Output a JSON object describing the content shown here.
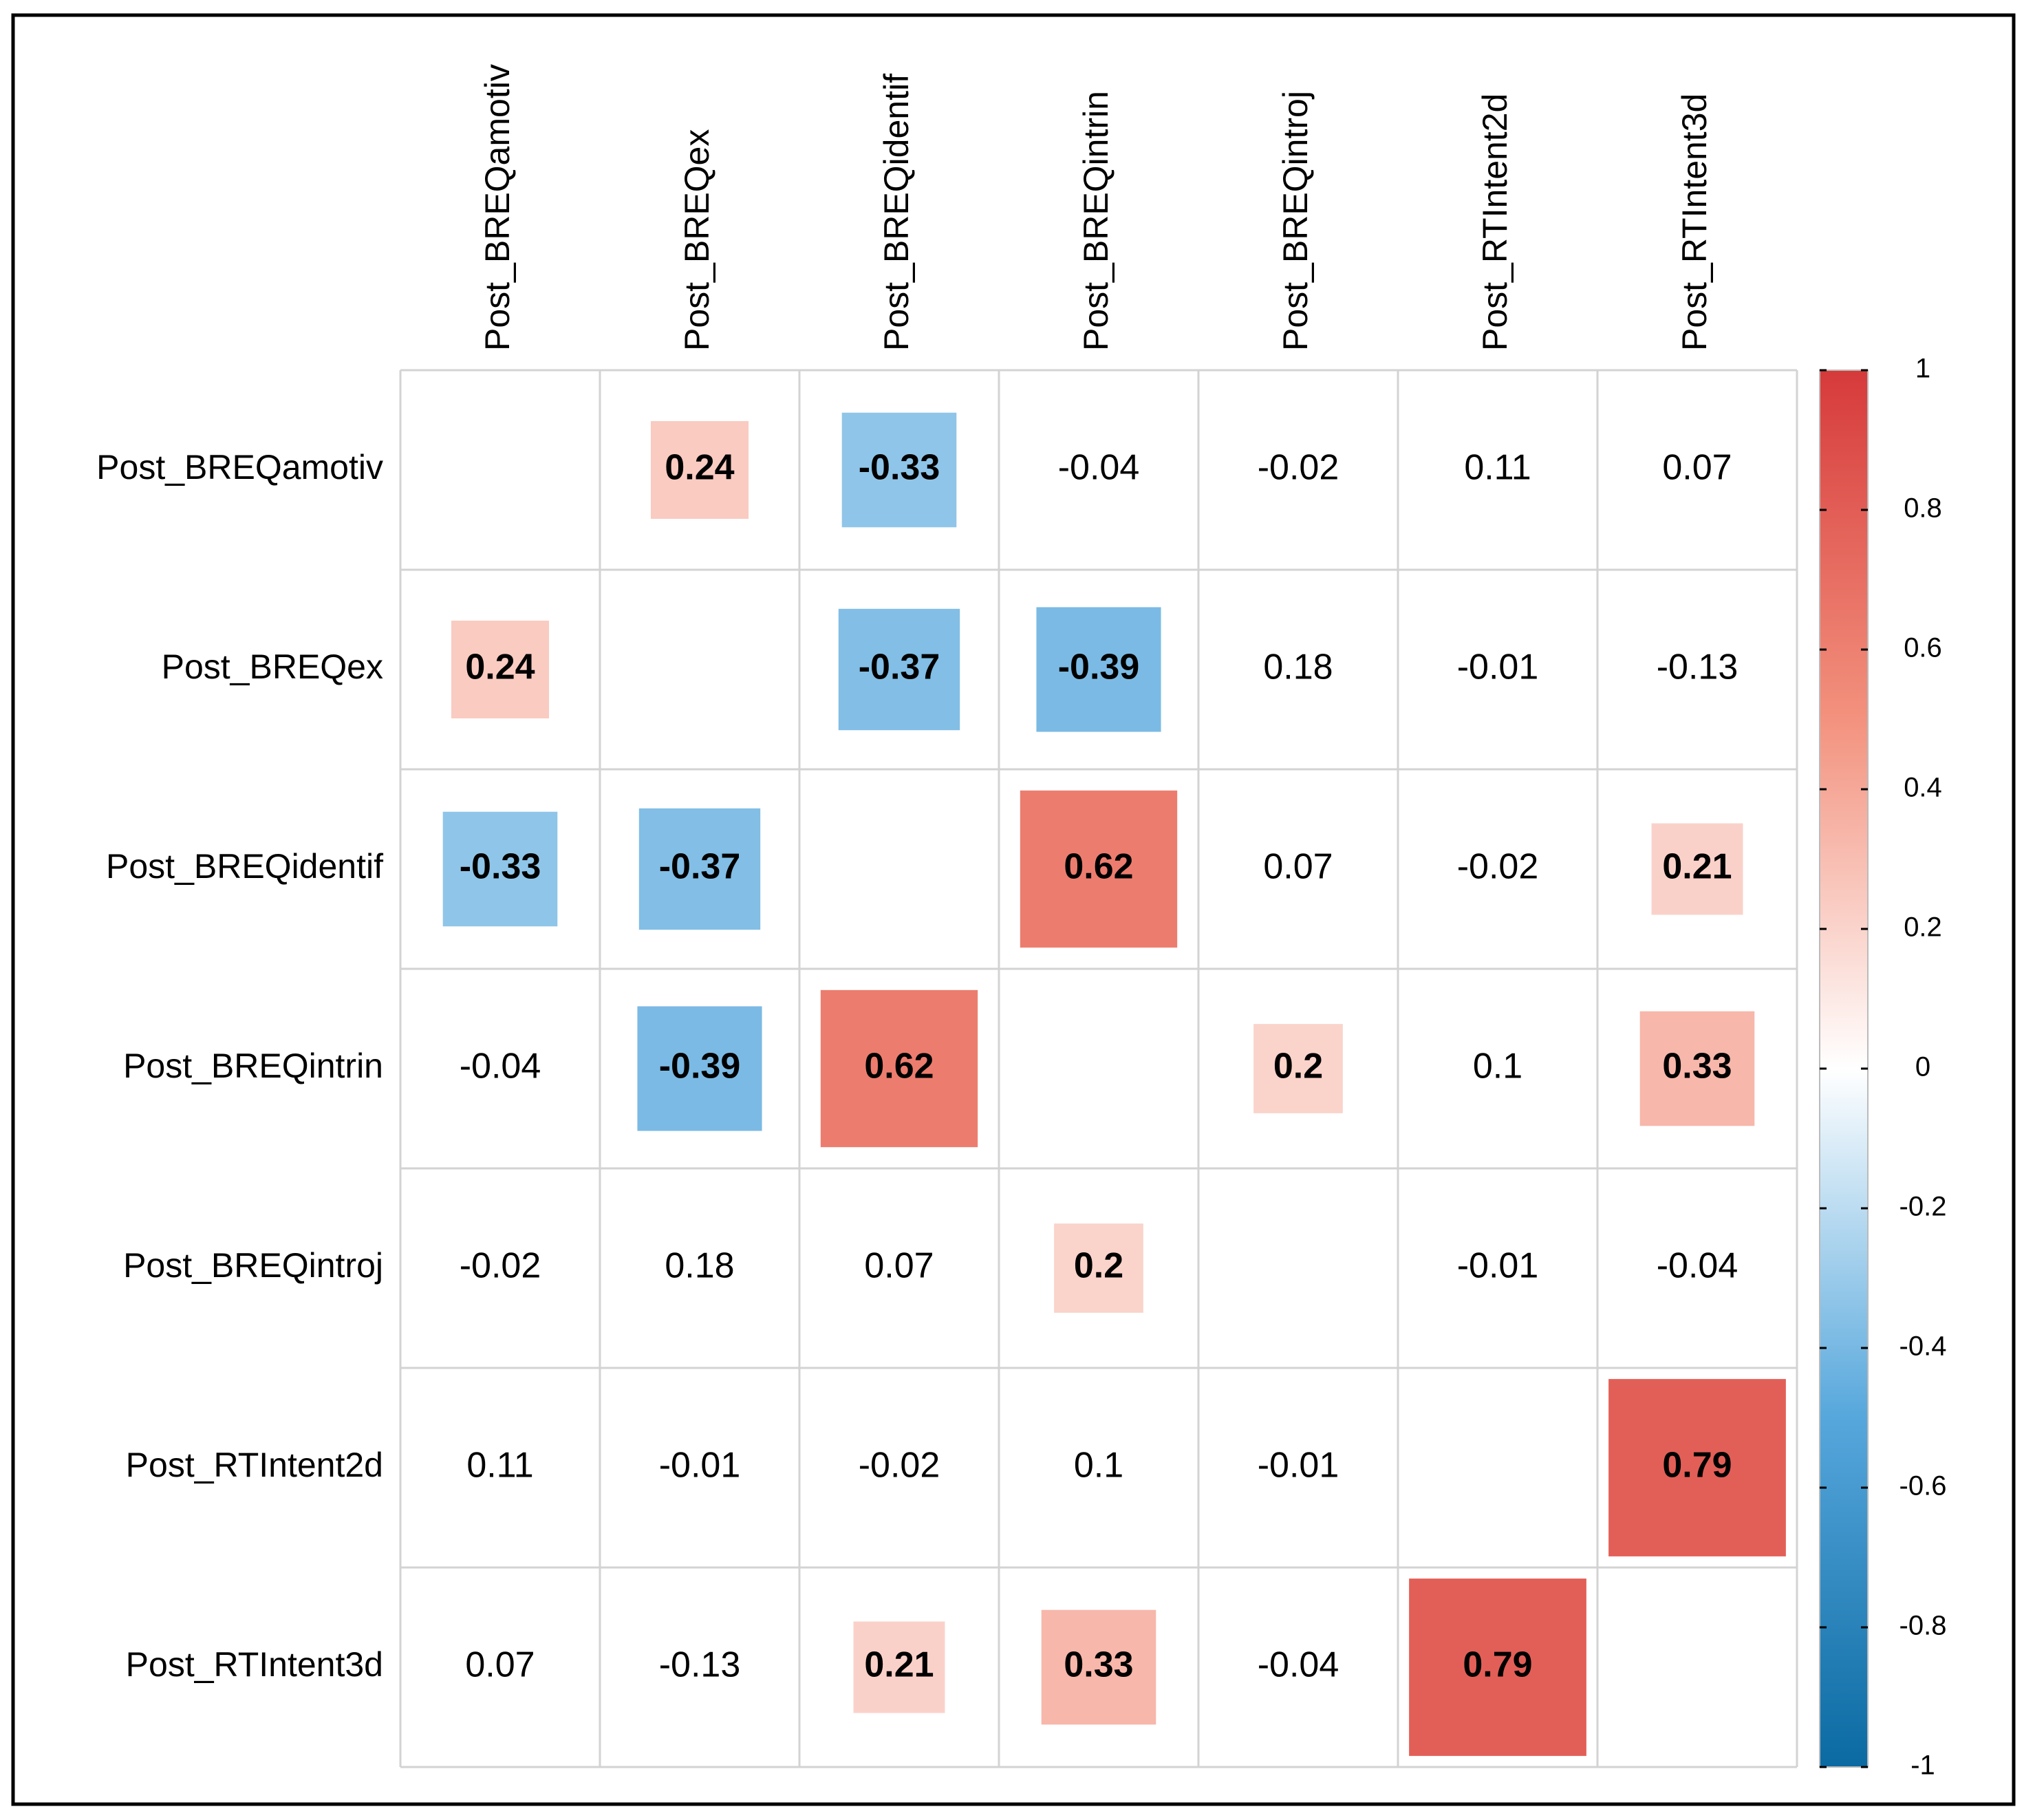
{
  "chart_data": {
    "type": "corrplot",
    "rows": [
      "Post_BREQamotiv",
      "Post_BREQex",
      "Post_BREQidentif",
      "Post_BREQintrin",
      "Post_BREQintroj",
      "Post_RTIntent2d",
      "Post_RTIntent3d"
    ],
    "columns": [
      "Post_BREQamotiv",
      "Post_BREQex",
      "Post_BREQidentif",
      "Post_BREQintrin",
      "Post_BREQintroj",
      "Post_RTIntent2d",
      "Post_RTIntent3d"
    ],
    "values": [
      [
        null,
        0.24,
        -0.33,
        -0.04,
        -0.02,
        0.11,
        0.07
      ],
      [
        0.24,
        null,
        -0.37,
        -0.39,
        0.18,
        -0.01,
        -0.13
      ],
      [
        -0.33,
        -0.37,
        null,
        0.62,
        0.07,
        -0.02,
        0.21
      ],
      [
        -0.04,
        -0.39,
        0.62,
        null,
        0.2,
        0.1,
        0.33
      ],
      [
        -0.02,
        0.18,
        0.07,
        0.2,
        null,
        -0.01,
        -0.04
      ],
      [
        0.11,
        -0.01,
        -0.02,
        0.1,
        -0.01,
        null,
        0.79
      ],
      [
        0.07,
        -0.13,
        0.21,
        0.33,
        -0.04,
        0.79,
        null
      ]
    ],
    "highlight_min": 0.2,
    "colors": [
      "#0b6aa2",
      "#56a7dc",
      "#ffffff",
      "#f3927e",
      "#d63a3a"
    ],
    "clim": [
      -1,
      1
    ],
    "cticks": [
      1,
      0.8,
      0.6,
      0.4,
      0.2,
      0,
      -0.2,
      -0.4,
      -0.6,
      -0.8,
      -1
    ]
  }
}
